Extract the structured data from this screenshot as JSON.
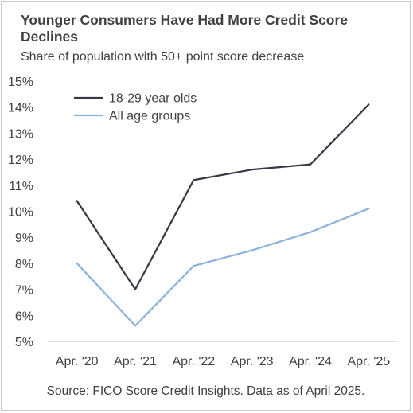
{
  "title": "Younger Consumers Have Had More Credit Score Declines",
  "subtitle": "Share of population with 50+ point score decrease",
  "source": "Source: FICO Score Credit Insights. Data as of April 2025.",
  "chart_data": {
    "type": "line",
    "title": "Younger Consumers Have Had More Credit Score Declines",
    "subtitle": "Share of population with 50+ point score decrease",
    "categories": [
      "Apr. '20",
      "Apr. '21",
      "Apr. '22",
      "Apr. '23",
      "Apr. '24",
      "Apr. '25"
    ],
    "series": [
      {
        "name": "18-29 year olds",
        "color": "#3a3848",
        "values": [
          10.4,
          7.0,
          11.2,
          11.6,
          11.8,
          14.1
        ]
      },
      {
        "name": "All age groups",
        "color": "#8db2dc",
        "values": [
          8.0,
          5.6,
          7.9,
          8.5,
          9.2,
          10.1
        ]
      }
    ],
    "ylim": [
      5,
      15
    ],
    "y_ticks": [
      "5%",
      "6%",
      "7%",
      "8%",
      "9%",
      "10%",
      "11%",
      "12%",
      "13%",
      "14%",
      "15%"
    ],
    "y_tick_values": [
      5,
      6,
      7,
      8,
      9,
      10,
      11,
      12,
      13,
      14,
      15
    ],
    "xlabel": "",
    "ylabel": "",
    "grid": false,
    "legend_position": "top-left",
    "axis_color": "#bfbfbf"
  }
}
